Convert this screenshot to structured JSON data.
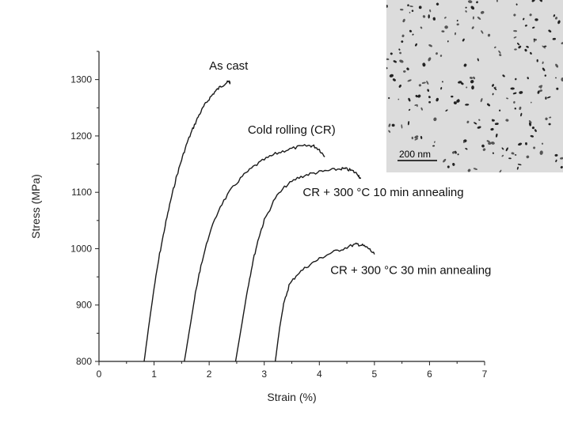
{
  "chart_data": {
    "type": "line",
    "xlabel": "Strain (%)",
    "ylabel": "Stress (MPa)",
    "xlim": [
      0,
      7
    ],
    "ylim": [
      800,
      1350
    ],
    "xticks": [
      0,
      1,
      2,
      3,
      4,
      5,
      6,
      7
    ],
    "yticks": [
      800,
      900,
      1000,
      1100,
      1200,
      1300
    ],
    "grid": false,
    "legend": "none",
    "series": [
      {
        "name": "As cast",
        "label_at": [
          2.0,
          1318
        ],
        "x": [
          0.82,
          0.9,
          1.0,
          1.1,
          1.2,
          1.3,
          1.4,
          1.5,
          1.6,
          1.7,
          1.8,
          1.9,
          2.0,
          2.1,
          2.2,
          2.3,
          2.36,
          2.38
        ],
        "y": [
          800,
          860,
          930,
          990,
          1040,
          1085,
          1125,
          1158,
          1188,
          1212,
          1234,
          1252,
          1266,
          1278,
          1287,
          1294,
          1296,
          1295
        ]
      },
      {
        "name": "Cold rolling (CR)",
        "label_at": [
          2.7,
          1204
        ],
        "x": [
          1.55,
          1.65,
          1.75,
          1.85,
          2.0,
          2.2,
          2.4,
          2.6,
          2.8,
          3.0,
          3.2,
          3.4,
          3.6,
          3.8,
          3.9,
          4.0,
          4.1
        ],
        "y": [
          800,
          860,
          920,
          970,
          1025,
          1075,
          1105,
          1128,
          1145,
          1158,
          1168,
          1175,
          1180,
          1183,
          1182,
          1176,
          1163
        ]
      },
      {
        "name": "CR + 300 °C 10 min annealing",
        "label_at": [
          3.7,
          1093
        ],
        "x": [
          2.48,
          2.6,
          2.7,
          2.8,
          2.9,
          3.0,
          3.2,
          3.4,
          3.6,
          3.8,
          4.0,
          4.2,
          4.4,
          4.5,
          4.6,
          4.7,
          4.75
        ],
        "y": [
          800,
          870,
          930,
          980,
          1020,
          1050,
          1090,
          1112,
          1125,
          1132,
          1136,
          1139,
          1142,
          1141,
          1138,
          1132,
          1124
        ]
      },
      {
        "name": "CR + 300 °C 30 min annealing",
        "label_at": [
          4.2,
          955
        ],
        "x": [
          3.2,
          3.28,
          3.35,
          3.45,
          3.6,
          3.8,
          4.0,
          4.2,
          4.4,
          4.6,
          4.7,
          4.8,
          4.9,
          5.0
        ],
        "y": [
          800,
          860,
          900,
          935,
          955,
          970,
          982,
          992,
          999,
          1006,
          1008,
          1005,
          1000,
          990
        ]
      }
    ]
  },
  "inset": {
    "scale_bar_label": "200 nm",
    "background": "#dcdcdc"
  }
}
